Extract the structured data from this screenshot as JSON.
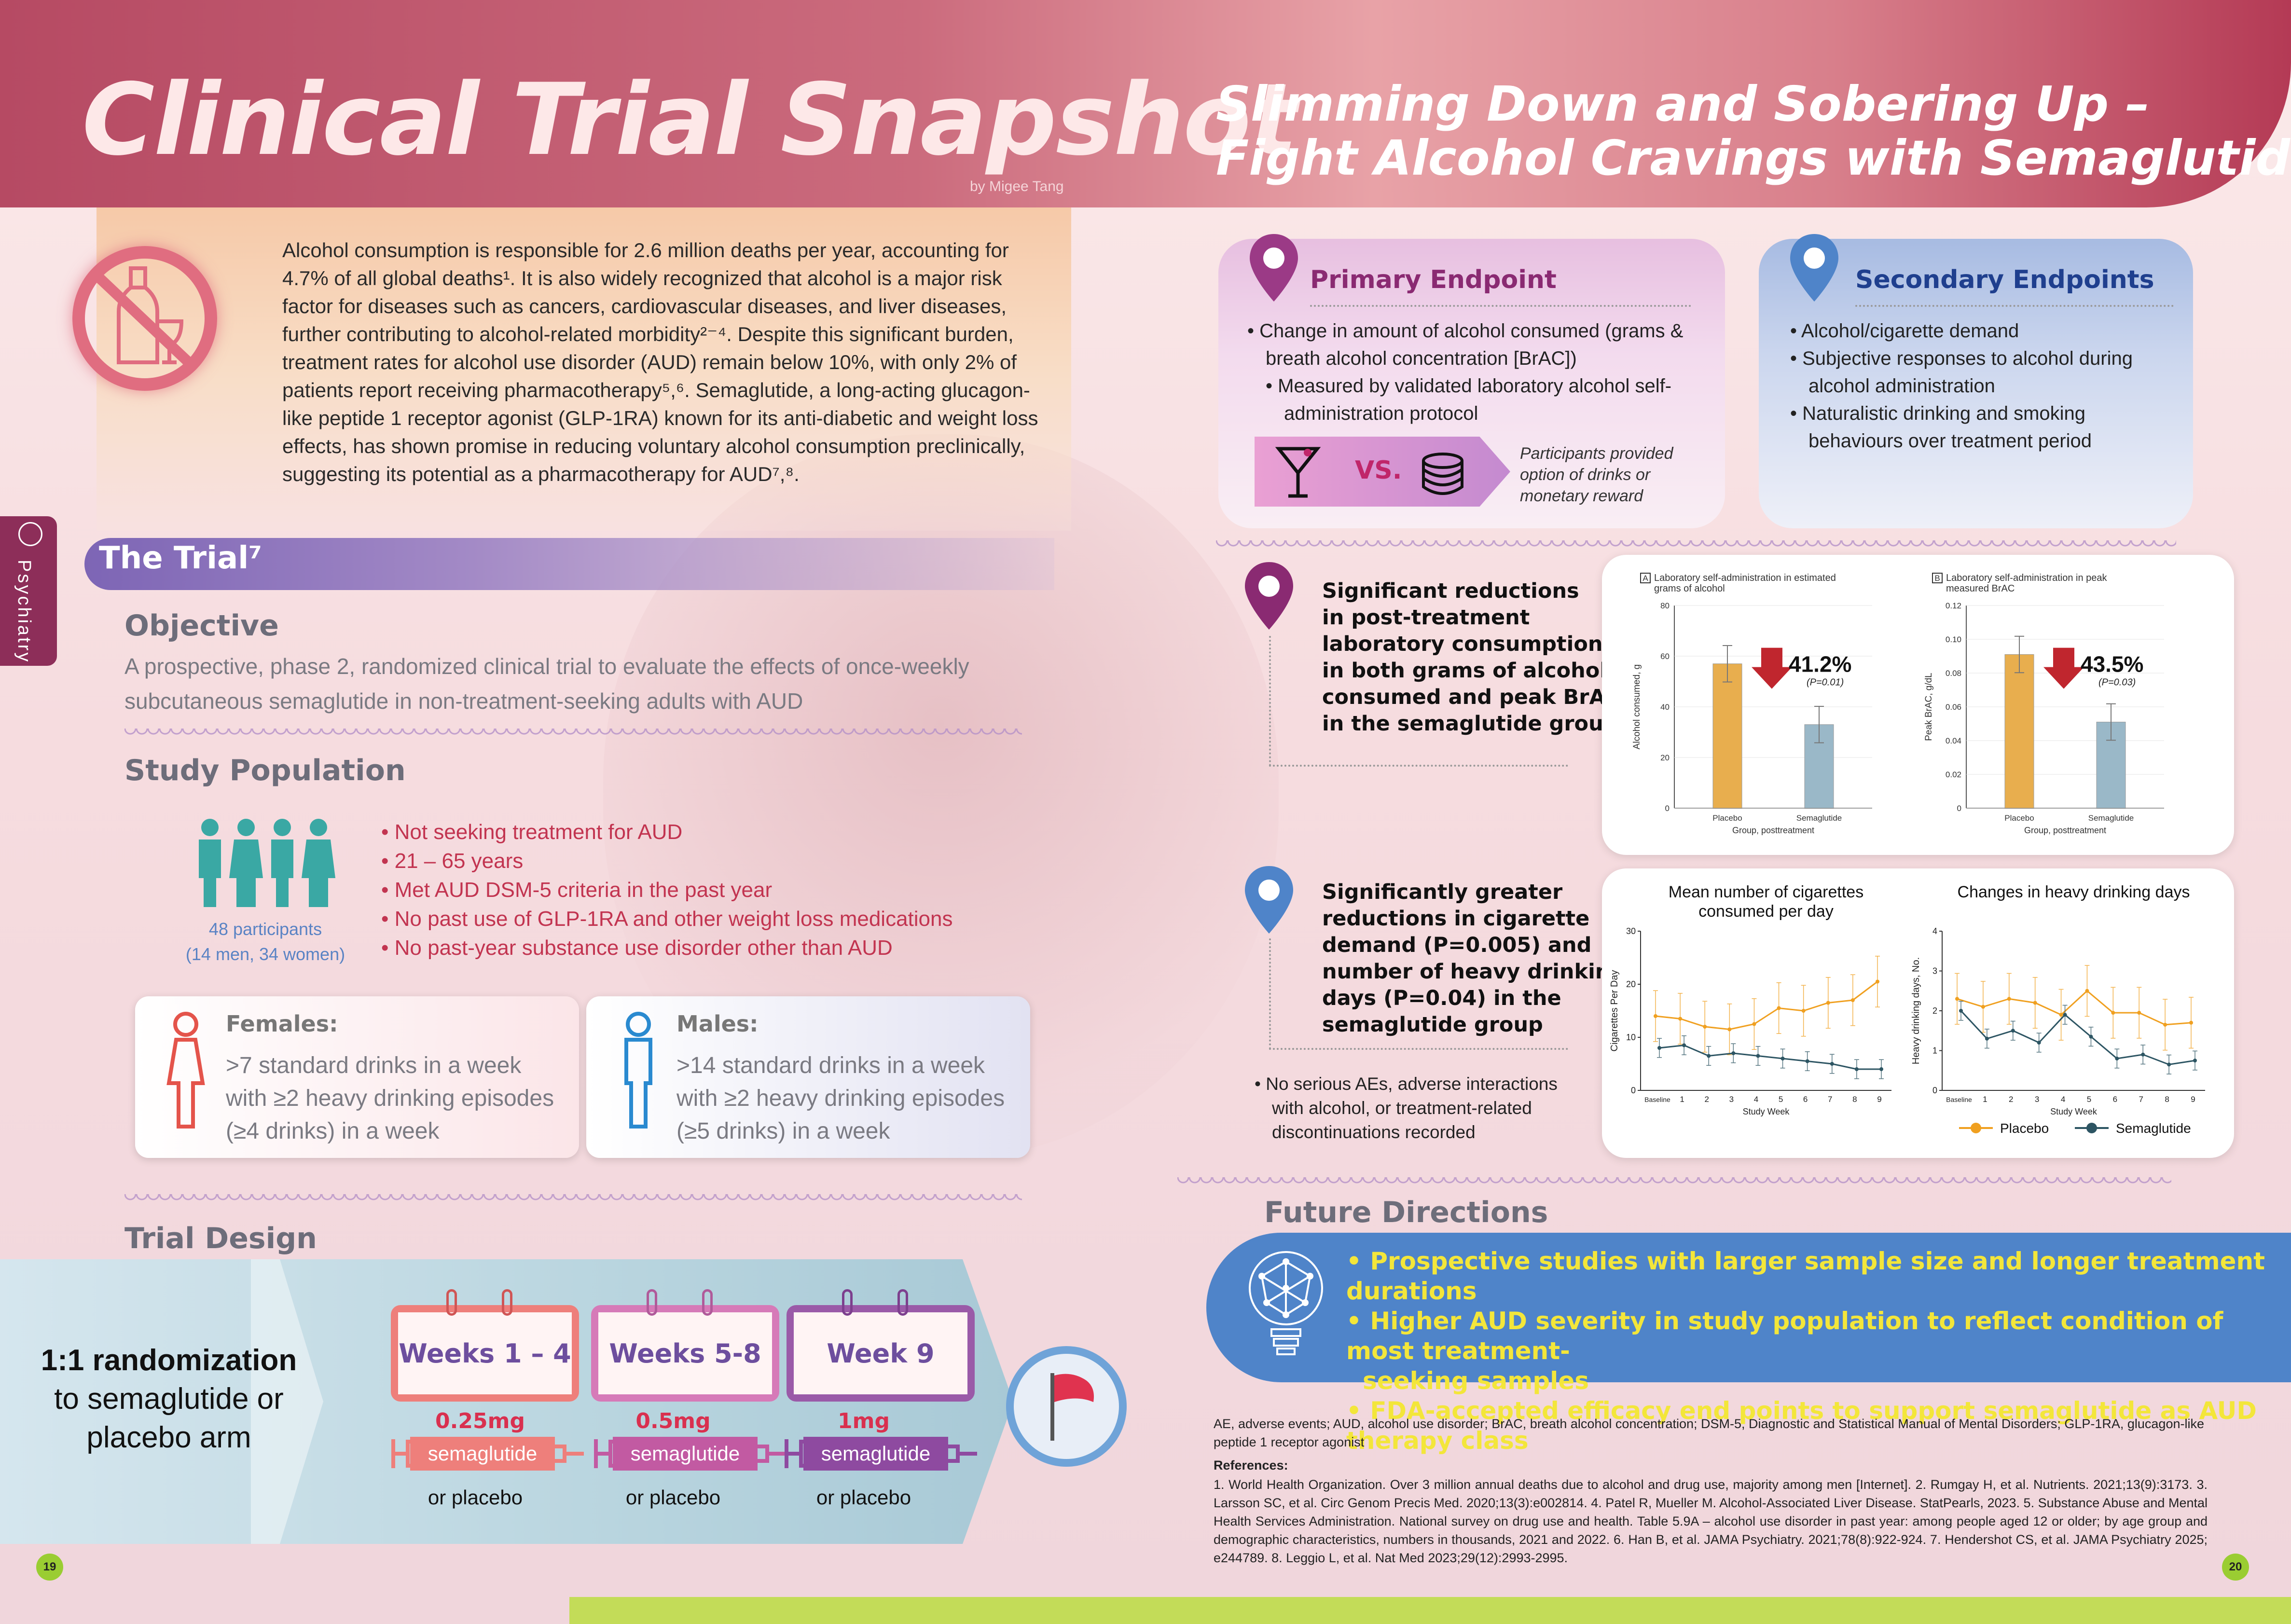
{
  "header": {
    "title": "Clinical Trial Snapshot",
    "byline": "by Migee Tang",
    "subtitle_line1": "Slimming Down and Sobering Up –",
    "subtitle_line2": "Fight Alcohol Cravings with Semaglutide"
  },
  "intro": {
    "text": "Alcohol consumption is responsible for 2.6 million deaths per year, accounting for 4.7% of all global deaths¹. It is also widely recognized that alcohol is a major risk factor for diseases such as cancers, cardiovascular diseases, and liver diseases, further contributing to alcohol-related morbidity²⁻⁴. Despite this significant burden, treatment rates for alcohol use disorder (AUD) remain below 10%, with only 2% of patients report receiving pharmacotherapy⁵,⁶. Semaglutide, a long-acting glucagon-like peptide 1 receptor agonist (GLP-1RA) known for its anti-diabetic and weight loss effects, has shown promise in reducing voluntary alcohol consumption preclinically, suggesting its potential as a pharmacotherapy for AUD⁷,⁸."
  },
  "side_tab": "Psychiatry",
  "trial": {
    "title": "The Trial⁷",
    "objective_h": "Objective",
    "objective": "A prospective, phase 2, randomized clinical trial to evaluate the effects of once-weekly subcutaneous semaglutide in non-treatment-seeking adults with AUD",
    "population_h": "Study Population",
    "participants_1": "48 participants",
    "participants_2": "(14 men, 34 women)",
    "criteria": [
      "• Not seeking treatment for AUD",
      "• 21 – 65 years",
      "• Met AUD DSM-5 criteria in the past year",
      "• No past use of GLP-1RA and other weight loss medications",
      "• No past-year substance use disorder other than AUD"
    ],
    "females_h": "Females:",
    "females_1": ">7 standard drinks in a week",
    "females_2": "with ≥2 heavy drinking episodes",
    "females_3": "(≥4 drinks) in a week",
    "males_h": "Males:",
    "males_1": ">14 standard drinks in a week",
    "males_2": "with ≥2 heavy drinking episodes",
    "males_3": "(≥5 drinks) in a week",
    "design_h": "Trial Design",
    "rand_1": "1:1 randomization",
    "rand_2": "to semaglutide or",
    "rand_3": "placebo arm",
    "phases": [
      {
        "weeks": "Weeks 1 – 4",
        "dose": "0.25mg",
        "drug": "semaglutide",
        "alt": "or placebo"
      },
      {
        "weeks": "Weeks 5-8",
        "dose": "0.5mg",
        "drug": "semaglutide",
        "alt": "or placebo"
      },
      {
        "weeks": "Week 9",
        "dose": "1mg",
        "drug": "semaglutide",
        "alt": "or placebo"
      }
    ]
  },
  "primary": {
    "title": "Primary Endpoint",
    "b1a": "• Change in amount of alcohol consumed (grams &",
    "b1b": "breath alcohol concentration [BrAC])",
    "b2a": "• Measured by validated laboratory alcohol self-",
    "b2b": "administration protocol",
    "vs": "VS.",
    "note1": "Participants provided",
    "note2": "option of drinks or",
    "note3": "monetary reward"
  },
  "secondary": {
    "title": "Secondary Endpoints",
    "b1": "• Alcohol/cigarette demand",
    "b2a": "• Subjective responses to alcohol during",
    "b2b": "alcohol administration",
    "b3a": "• Naturalistic drinking and smoking",
    "b3b": "behaviours over treatment period"
  },
  "finding1": {
    "l1": "Significant reductions",
    "l2": "in post-treatment",
    "l3": "laboratory consumption",
    "l4": "in both grams of alcohol",
    "l5": "consumed and peak BrAC",
    "l6": "in the semaglutide group"
  },
  "finding2": {
    "l1": "Significantly greater",
    "l2": "reductions in cigarette",
    "l3": "demand (P=0.005) and",
    "l4": "number of heavy drinking",
    "l5": "days (P=0.04) in the",
    "l6": "semaglutide group",
    "n1": "• No serious AEs, adverse interactions",
    "n2": "with alcohol, or treatment-related",
    "n3": "discontinuations recorded"
  },
  "chart_data": [
    {
      "type": "bar",
      "panel": "A",
      "title_1": "Laboratory self-administration in estimated",
      "title_2": "grams of alcohol",
      "categories": [
        "Placebo",
        "Semaglutide"
      ],
      "values": [
        57,
        33
      ],
      "ylabel": "Alcohol consumed, g",
      "xlabel": "Group, posttreatment",
      "ylim": [
        0,
        80
      ],
      "yticks": [
        "0",
        "20",
        "40",
        "60",
        "80"
      ],
      "reduction": "41.2%",
      "p": "(P=0.01)",
      "colors": [
        "#e8ae4e",
        "#9ab8c8"
      ]
    },
    {
      "type": "bar",
      "panel": "B",
      "title_1": "Laboratory self-administration in peak",
      "title_2": "measured BrAC",
      "categories": [
        "Placebo",
        "Semaglutide"
      ],
      "values": [
        0.091,
        0.051
      ],
      "ylabel": "Peak BrAC, g/dL",
      "xlabel": "Group, posttreatment",
      "ylim": [
        0,
        0.12
      ],
      "yticks": [
        "0",
        "0.02",
        "0.04",
        "0.06",
        "0.08",
        "0.10",
        "0.12"
      ],
      "reduction": "43.5%",
      "p": "(P=0.03)",
      "colors": [
        "#e8ae4e",
        "#9ab8c8"
      ]
    },
    {
      "type": "line",
      "title_1": "Mean number of cigarettes",
      "title_2": "consumed per day",
      "x": [
        "Baseline",
        "1",
        "2",
        "3",
        "4",
        "5",
        "6",
        "7",
        "8",
        "9"
      ],
      "ylabel": "Cigarettes Per Day",
      "xlabel": "Study Week",
      "ylim": [
        0,
        30
      ],
      "yticks": [
        "0",
        "10",
        "20",
        "30"
      ],
      "series": [
        {
          "name": "Placebo",
          "values": [
            14,
            13.5,
            12,
            11.5,
            12.5,
            15.5,
            15,
            16.5,
            17,
            20.5
          ]
        },
        {
          "name": "Semaglutide",
          "values": [
            8,
            8.5,
            6.5,
            7,
            6.5,
            6,
            5.5,
            5,
            4,
            4
          ]
        }
      ]
    },
    {
      "type": "line",
      "title_1": "Changes in heavy drinking days",
      "title_2": "",
      "x": [
        "Baseline",
        "1",
        "2",
        "3",
        "4",
        "5",
        "6",
        "7",
        "8",
        "9"
      ],
      "ylabel": "Heavy drinking days, No.",
      "xlabel": "Study Week",
      "ylim": [
        0,
        4
      ],
      "yticks": [
        "0",
        "1",
        "2",
        "3",
        "4"
      ],
      "series": [
        {
          "name": "Placebo",
          "values": [
            2.3,
            2.1,
            2.3,
            2.2,
            1.9,
            2.5,
            1.95,
            1.95,
            1.65,
            1.7
          ]
        },
        {
          "name": "Semaglutide",
          "values": [
            2,
            1.3,
            1.5,
            1.2,
            1.9,
            1.35,
            0.8,
            0.9,
            0.65,
            0.75
          ]
        }
      ]
    }
  ],
  "legend": {
    "placebo": "Placebo",
    "semaglutide": "Semaglutide"
  },
  "future": {
    "title": "Future Directions",
    "i1": "• Prospective studies with larger sample size and longer treatment durations",
    "i2a": "• Higher AUD severity in study population to reflect condition of most treatment-",
    "i2b": "seeking samples",
    "i3": "• FDA-accepted efficacy end points to support semaglutide as AUD therapy class"
  },
  "abbreviations": "AE, adverse events; AUD, alcohol use disorder; BrAC, breath alcohol concentration; DSM-5, Diagnostic and Statistical Manual of Mental Disorders; GLP-1RA, glucagon-like peptide 1 receptor agonist",
  "references_h": "References:",
  "references": "1. World Health Organization. Over 3 million annual deaths due to alcohol and drug use, majority among men [Internet]. 2. Rumgay H, et al. Nutrients. 2021;13(9):3173. 3. Larsson SC, et al. Circ Genom Precis Med. 2020;13(3):e002814. 4. Patel R, Mueller M. Alcohol-Associated Liver Disease. StatPearls, 2023. 5. Substance Abuse and Mental Health Services Administration. National survey on drug use and health. Table 5.9A – alcohol use disorder in past year: among people aged 12 or older; by age group and demographic characteristics, numbers in thousands, 2021 and 2022. 6. Han B, et al. JAMA Psychiatry. 2021;78(8):922-924. 7. Hendershot CS, et al. JAMA Psychiatry 2025; e244789. 8. Leggio L, et al. Nat Med 2023;29(12):2993-2995.",
  "pages": {
    "left": "19",
    "right": "20"
  }
}
